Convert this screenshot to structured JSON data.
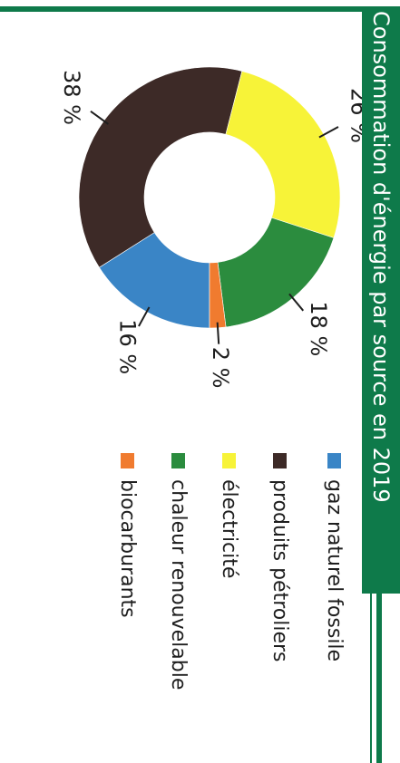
{
  "title": "Consommation d'énergie par source en 2019",
  "chart_data": {
    "type": "pie",
    "title": "Consommation d'énergie par source en 2019",
    "legend_position": "right",
    "slices": [
      {
        "name": "gaz naturel fossile",
        "value": 16,
        "label": "16 %",
        "color": "#3a85c6"
      },
      {
        "name": "produits pétroliers",
        "value": 38,
        "label": "38 %",
        "color": "#3d2a27"
      },
      {
        "name": "électricité",
        "value": 26,
        "label": "26 %",
        "color": "#f7f338"
      },
      {
        "name": "chaleur renouvelable",
        "value": 18,
        "label": "18 %",
        "color": "#2b8c3e"
      },
      {
        "name": "biocarburants",
        "value": 2,
        "label": "2 %",
        "color": "#f07b2f"
      }
    ],
    "legend_order": [
      "gaz naturel fossile",
      "produits pétroliers",
      "électricité",
      "chaleur renouvelable",
      "biocarburants"
    ]
  },
  "colors": {
    "frame_green": "#0e7a4a",
    "title_text": "#ffffff"
  }
}
